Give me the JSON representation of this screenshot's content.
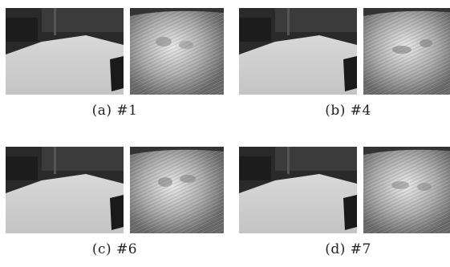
{
  "figure": {
    "panels": [
      {
        "caption": "(a)  #1",
        "left_image": "room-scene-photo",
        "right_image": "floor-texture-closeup"
      },
      {
        "caption": "(b)  #4",
        "left_image": "room-scene-photo",
        "right_image": "floor-texture-closeup"
      },
      {
        "caption": "(c)  #6",
        "left_image": "room-scene-photo",
        "right_image": "floor-texture-closeup"
      },
      {
        "caption": "(d)  #7",
        "left_image": "room-scene-photo",
        "right_image": "floor-texture-closeup"
      }
    ]
  }
}
